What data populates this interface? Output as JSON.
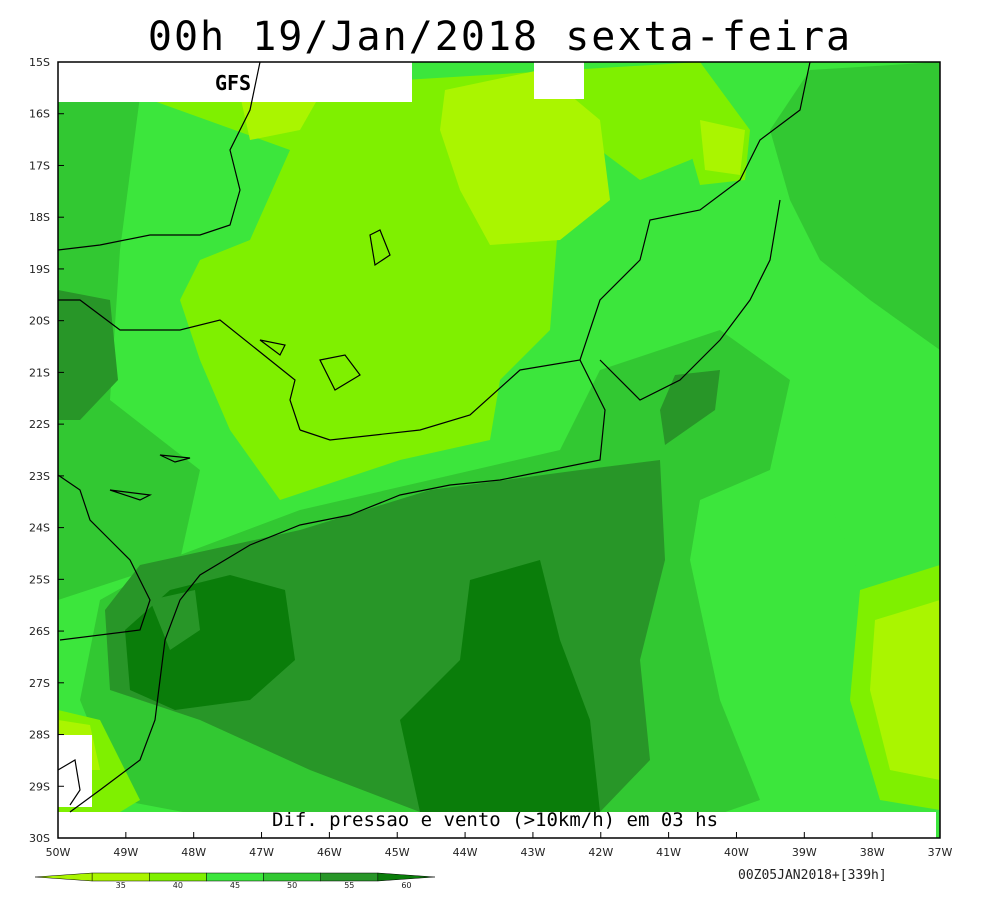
{
  "title": "00h 19/Jan/2018 sexta-feira",
  "model_label": "GFS",
  "caption": "Dif. pressao e vento (>10km/h) em 03 hs",
  "footer": "00Z05JAN2018+[339h]",
  "lat_labels": [
    "15S",
    "16S",
    "17S",
    "18S",
    "19S",
    "20S",
    "21S",
    "22S",
    "23S",
    "24S",
    "25S",
    "26S",
    "27S",
    "28S",
    "29S",
    "30S"
  ],
  "lon_labels": [
    "50W",
    "49W",
    "48W",
    "47W",
    "46W",
    "45W",
    "44W",
    "43W",
    "42W",
    "41W",
    "40W",
    "39W",
    "38W",
    "37W"
  ],
  "colorbar": {
    "labels": [
      "35",
      "40",
      "45",
      "50",
      "55",
      "60"
    ],
    "colors": [
      "#aaf500",
      "#7ff000",
      "#3ce63c",
      "#32c832",
      "#289628",
      "#0a7d0a"
    ]
  },
  "palette": {
    "level_35": "#aaf500",
    "level_40": "#7ff000",
    "level_45": "#3ce63c",
    "level_50": "#32c832",
    "level_55": "#289628",
    "level_60": "#0a7d0a"
  }
}
